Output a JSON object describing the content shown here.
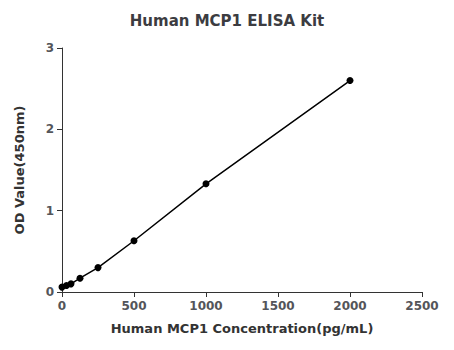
{
  "chart_data": {
    "type": "line",
    "title": "Human MCP1 ELISA Kit",
    "xlabel": "Human MCP1 Concentration(pg/mL)",
    "ylabel": "OD Value(450nm)",
    "x": [
      0,
      31.25,
      62.5,
      125,
      250,
      500,
      1000,
      2000
    ],
    "values": [
      0.06,
      0.08,
      0.1,
      0.17,
      0.3,
      0.63,
      1.33,
      2.6
    ],
    "color": "#000000",
    "marker": "circle",
    "xlim": [
      0,
      2500
    ],
    "ylim": [
      0,
      3
    ],
    "xticks": [
      0,
      500,
      1000,
      1500,
      2000,
      2500
    ],
    "yticks": [
      0,
      1,
      2,
      3
    ],
    "grid": false
  }
}
